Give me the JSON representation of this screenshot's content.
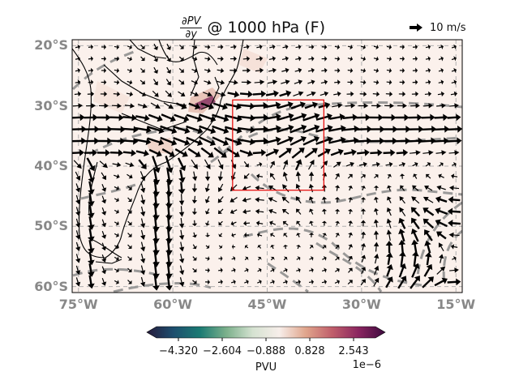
{
  "title": {
    "numerator": "∂PV",
    "denominator": "∂y",
    "rest": "@ 1000 hPa (F)"
  },
  "quiver_key": {
    "label": "10 m/s",
    "icon": "arrow-right-icon"
  },
  "map": {
    "projection": "PlateCarree",
    "lon_range": [
      -76,
      -14
    ],
    "lat_range": [
      -61,
      -19
    ],
    "lat_ticks": [
      {
        "value": -20,
        "label": "20°S"
      },
      {
        "value": -30,
        "label": "30°S"
      },
      {
        "value": -40,
        "label": "40°S"
      },
      {
        "value": -50,
        "label": "50°S"
      },
      {
        "value": -60,
        "label": "60°S"
      }
    ],
    "lon_ticks": [
      {
        "value": -75,
        "label": "75°W"
      },
      {
        "value": -60,
        "label": "60°W"
      },
      {
        "value": -45,
        "label": "45°W"
      },
      {
        "value": -30,
        "label": "30°W"
      },
      {
        "value": -15,
        "label": "15°W"
      }
    ],
    "gridlines": true,
    "highlight_box": {
      "lon_min": -50.5,
      "lon_max": -36,
      "lat_min": -44,
      "lat_max": -29
    },
    "colors": {
      "background": "#fbf1ec",
      "box": "#e60000",
      "contour": "#8a8a8a",
      "coast": "#000000",
      "gridline": "#b0b0b0",
      "tick_label": "#888888"
    }
  },
  "colorbar": {
    "label": "PVU",
    "offset": "1e−6",
    "tick_labels": [
      "−4.320",
      "−2.604",
      "−0.888",
      "0.828",
      "2.543"
    ],
    "tick_values": [
      -4.32,
      -2.604,
      -0.888,
      0.828,
      2.543
    ],
    "range": [
      -5.178,
      3.401
    ],
    "extend": "both",
    "colormap": [
      "#261a3b",
      "#1d4e6e",
      "#1a7a73",
      "#7bb08b",
      "#d5e2d1",
      "#f7eeea",
      "#e0a58c",
      "#c05e6b",
      "#8a2560",
      "#3d0a3e"
    ]
  }
}
